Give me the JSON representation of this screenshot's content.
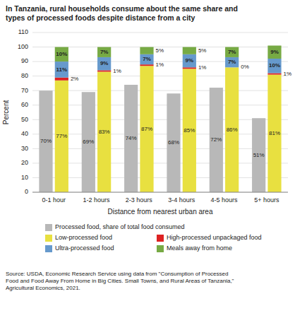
{
  "chart_data": {
    "type": "bar",
    "title": "In Tanzania, rural households consume about the same share and\ntypes of processed foods despite distance from a city",
    "xlabel": "Distance from nearest urban area",
    "ylabel": "Percent",
    "categories": [
      "0-1 hour",
      "1-2 hours",
      "2-3 hours",
      "3-4 hours",
      "4-5 hours",
      "5+ hours"
    ],
    "series": [
      {
        "name": "Processed food, share of total food consumed",
        "type": "bar",
        "color": "#b8b8b8",
        "values": [
          70,
          69,
          74,
          68,
          72,
          51
        ],
        "value_labels": [
          "70%",
          "69%",
          "74%",
          "68%",
          "72%",
          "51%"
        ]
      },
      {
        "name": "Low-processed food",
        "type": "stacked-bar",
        "color": "#e8e040",
        "values": [
          77,
          83,
          87,
          85,
          86,
          81
        ],
        "value_labels": [
          "77%",
          "83%",
          "87%",
          "85%",
          "86%",
          "81%"
        ]
      },
      {
        "name": "High-processed unpackaged food",
        "type": "stacked-bar",
        "color": "#dd2222",
        "values": [
          2,
          1,
          1,
          1,
          0,
          1
        ],
        "value_labels": [
          "2%",
          "1%",
          "1%",
          "1%",
          "0%",
          "1%"
        ]
      },
      {
        "name": "Ultra-processed food",
        "type": "stacked-bar",
        "color": "#6699cc",
        "values": [
          11,
          9,
          7,
          9,
          7,
          10
        ],
        "value_labels": [
          "11%",
          "9%",
          "7%",
          "9%",
          "7%",
          "10%"
        ]
      },
      {
        "name": "Meals away from home",
        "type": "stacked-bar",
        "color": "#77aa44",
        "values": [
          10,
          7,
          5,
          5,
          7,
          9
        ],
        "value_labels": [
          "10%",
          "7%",
          "5%",
          "5%",
          "7%",
          "9%"
        ]
      }
    ],
    "stacked": true,
    "data_labels": true,
    "ylim": [
      0,
      110
    ],
    "yticks": [
      0,
      10,
      20,
      30,
      40,
      50,
      60,
      70,
      80,
      90,
      100,
      110
    ],
    "grid": true,
    "legend": "bottom",
    "annotations": [
      "Source: USDA, Economic Research Service using data from \"Consumption of Processed\nFood and Food Away From Home in Big Cities. Small Towns, and Rural Areas of Tanzania,\"\nAgricultural Economics, 2021."
    ]
  }
}
